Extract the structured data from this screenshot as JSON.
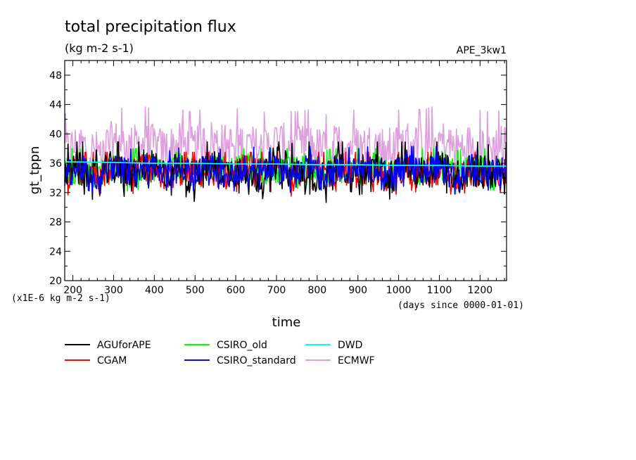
{
  "chart_data": {
    "type": "line",
    "title": "total precipitation flux",
    "subtitle": "(kg m-2 s-1)",
    "tag": "APE_3kw1",
    "xlabel": "time",
    "ylabel": "gt_tppn",
    "x_note": "(days since 0000-01-01)",
    "y_note": "(x1E-6 kg m-2 s-1)",
    "xlim": [
      180,
      1265
    ],
    "ylim": [
      20,
      50
    ],
    "x_ticks": [
      200,
      300,
      400,
      500,
      600,
      700,
      800,
      900,
      1000,
      1100,
      1200
    ],
    "y_ticks": [
      20,
      24,
      28,
      32,
      36,
      40,
      44,
      48
    ],
    "grid": false,
    "legend_position": "bottom",
    "series": [
      {
        "name": "AGUforAPE",
        "color": "#000000",
        "x": [
          180,
          220,
          260,
          300,
          340,
          380,
          420,
          460,
          500,
          540,
          580,
          620,
          660,
          700,
          740,
          780,
          820,
          860,
          900,
          940,
          980,
          1020,
          1060,
          1100,
          1140,
          1180,
          1220,
          1265
        ],
        "y": [
          34.5,
          35.2,
          33.8,
          35.6,
          34.1,
          36.0,
          34.4,
          35.1,
          33.9,
          35.8,
          34.6,
          35.3,
          34.0,
          36.2,
          34.7,
          35.0,
          33.7,
          35.9,
          34.8,
          35.4,
          34.2,
          35.7,
          34.5,
          36.1,
          33.9,
          35.2,
          34.6,
          35.0
        ],
        "range": [
          30.6,
          38.9
        ]
      },
      {
        "name": "CGAM",
        "color": "#ff0000",
        "x": [
          180,
          220,
          260,
          300,
          340,
          380,
          420,
          460,
          500,
          540,
          580,
          620,
          660,
          700,
          740,
          780,
          820,
          860,
          900,
          940,
          980,
          1020,
          1060,
          1100,
          1140,
          1180,
          1220,
          1265
        ],
        "y": [
          34.2,
          34.9,
          34.0,
          35.2,
          34.3,
          35.5,
          34.1,
          34.8,
          34.4,
          35.0,
          34.2,
          35.3,
          34.5,
          34.9,
          34.1,
          35.4,
          34.3,
          35.1,
          34.6,
          34.8,
          34.0,
          35.2,
          34.4,
          35.0,
          34.2,
          34.9,
          34.5,
          34.7
        ],
        "range": [
          30.5,
          37.5
        ]
      },
      {
        "name": "CSIRO_old",
        "color": "#00ff00",
        "x": [
          180,
          220,
          260,
          300,
          340,
          380,
          420,
          460,
          500,
          540,
          580,
          620,
          660,
          700,
          740,
          780,
          820,
          860,
          900,
          940,
          980,
          1020,
          1060,
          1100,
          1140,
          1180,
          1220,
          1265
        ],
        "y": [
          34.8,
          35.0,
          34.3,
          35.9,
          34.6,
          35.4,
          34.9,
          35.7,
          34.4,
          35.2,
          35.0,
          35.6,
          34.7,
          35.3,
          34.9,
          35.8,
          34.5,
          35.1,
          35.0,
          35.5,
          34.6,
          35.4,
          34.8,
          35.9,
          34.4,
          35.2,
          34.9,
          35.1
        ],
        "range": [
          31.2,
          38.0
        ]
      },
      {
        "name": "CSIRO_standard",
        "color": "#0000ff",
        "x": [
          180,
          220,
          260,
          300,
          340,
          380,
          420,
          460,
          500,
          540,
          580,
          620,
          660,
          700,
          740,
          780,
          820,
          860,
          900,
          940,
          980,
          1020,
          1060,
          1100,
          1140,
          1180,
          1220,
          1265
        ],
        "y": [
          34.6,
          35.3,
          34.1,
          35.5,
          34.8,
          35.7,
          34.3,
          35.0,
          34.7,
          35.6,
          34.2,
          35.4,
          34.9,
          35.1,
          34.4,
          35.8,
          34.5,
          35.2,
          34.9,
          35.3,
          34.3,
          35.6,
          34.7,
          35.4,
          34.1,
          35.5,
          34.8,
          34.9
        ],
        "range": [
          31.8,
          38.3
        ]
      },
      {
        "name": "DWD",
        "color": "#00ffff",
        "x": [
          180,
          300,
          400,
          500,
          600,
          700,
          800,
          900,
          1000,
          1100,
          1200,
          1265
        ],
        "y": [
          36.2,
          36.1,
          36.0,
          36.0,
          35.9,
          35.9,
          35.8,
          35.8,
          35.7,
          35.7,
          35.6,
          35.6
        ]
      },
      {
        "name": "ECMWF",
        "color": "#dda0dd",
        "x": [
          180,
          220,
          260,
          300,
          340,
          380,
          420,
          460,
          500,
          540,
          580,
          620,
          660,
          700,
          740,
          780,
          820,
          860,
          900,
          940,
          980,
          1020,
          1060,
          1100,
          1140,
          1180,
          1220,
          1265
        ],
        "y": [
          37.8,
          38.6,
          37.5,
          39.0,
          38.2,
          38.8,
          37.9,
          38.5,
          38.0,
          39.1,
          38.3,
          38.7,
          37.8,
          38.9,
          38.1,
          38.4,
          37.7,
          38.8,
          38.2,
          38.6,
          37.9,
          38.9,
          38.3,
          39.2,
          38.0,
          38.5,
          38.1,
          38.4
        ],
        "range": [
          34.5,
          44.8
        ]
      }
    ]
  }
}
